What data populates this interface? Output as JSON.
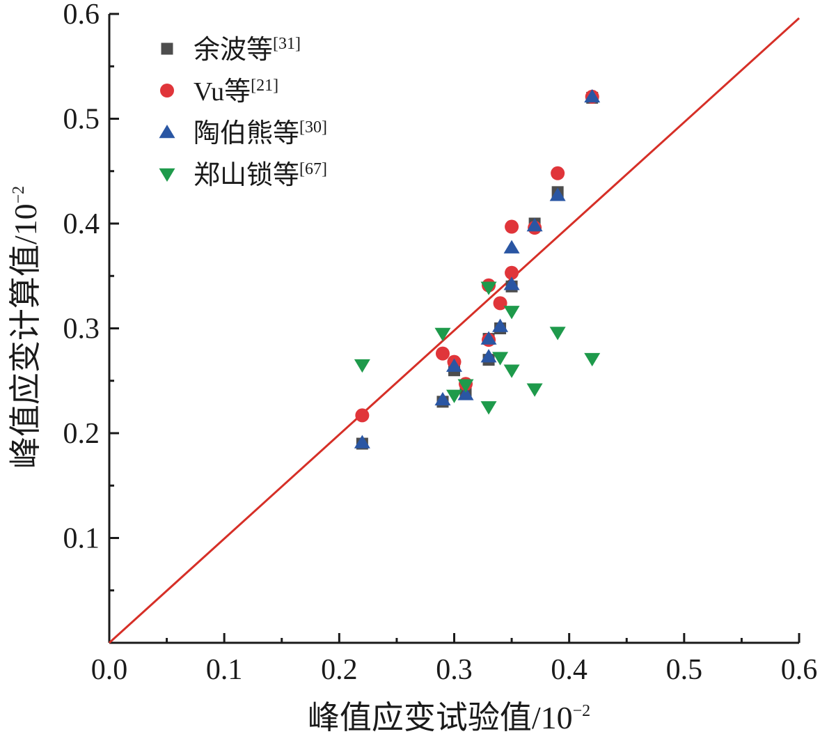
{
  "chart_data": {
    "type": "scatter",
    "xlabel": "峰值应变试验值/10",
    "xlabel_exp": "−2",
    "ylabel": "峰值应变计算值/10",
    "ylabel_exp": "−2",
    "xlim": [
      0,
      0.6
    ],
    "ylim": [
      0,
      0.6
    ],
    "x_ticks": [
      "0.0",
      "0.1",
      "0.2",
      "0.3",
      "0.4",
      "0.5",
      "0.6"
    ],
    "y_ticks": [
      "0.1",
      "0.2",
      "0.3",
      "0.4",
      "0.5",
      "0.6"
    ],
    "grid": false,
    "legend_position": "top-left",
    "reference_line": {
      "x": [
        0,
        0.6
      ],
      "y": [
        0,
        0.596
      ],
      "color": "#d62f27"
    },
    "series": [
      {
        "name": "余波等",
        "ref": "[31]",
        "marker": "square",
        "color": "#4d4d4d",
        "points": [
          [
            0.22,
            0.19
          ],
          [
            0.29,
            0.23
          ],
          [
            0.3,
            0.26
          ],
          [
            0.31,
            0.24
          ],
          [
            0.33,
            0.27
          ],
          [
            0.33,
            0.29
          ],
          [
            0.34,
            0.3
          ],
          [
            0.35,
            0.34
          ],
          [
            0.37,
            0.4
          ],
          [
            0.39,
            0.43
          ],
          [
            0.42,
            0.52
          ]
        ]
      },
      {
        "name": "Vu等",
        "ref": "[21]",
        "marker": "circle",
        "color": "#e0353a",
        "points": [
          [
            0.22,
            0.217
          ],
          [
            0.29,
            0.276
          ],
          [
            0.3,
            0.268
          ],
          [
            0.31,
            0.247
          ],
          [
            0.33,
            0.341
          ],
          [
            0.33,
            0.289
          ],
          [
            0.34,
            0.324
          ],
          [
            0.35,
            0.353
          ],
          [
            0.35,
            0.397
          ],
          [
            0.37,
            0.396
          ],
          [
            0.39,
            0.448
          ],
          [
            0.42,
            0.521
          ]
        ]
      },
      {
        "name": "陶伯熊等",
        "ref": "[30]",
        "marker": "triangle-up",
        "color": "#2a56a3",
        "points": [
          [
            0.22,
            0.191
          ],
          [
            0.29,
            0.232
          ],
          [
            0.3,
            0.264
          ],
          [
            0.31,
            0.237
          ],
          [
            0.33,
            0.273
          ],
          [
            0.33,
            0.29
          ],
          [
            0.34,
            0.302
          ],
          [
            0.35,
            0.342
          ],
          [
            0.35,
            0.377
          ],
          [
            0.37,
            0.398
          ],
          [
            0.39,
            0.427
          ],
          [
            0.42,
            0.521
          ]
        ]
      },
      {
        "name": "郑山锁等",
        "ref": "[67]",
        "marker": "triangle-down",
        "color": "#1e9a4b",
        "points": [
          [
            0.22,
            0.265
          ],
          [
            0.29,
            0.295
          ],
          [
            0.3,
            0.236
          ],
          [
            0.31,
            0.246
          ],
          [
            0.33,
            0.225
          ],
          [
            0.33,
            0.339
          ],
          [
            0.34,
            0.272
          ],
          [
            0.35,
            0.316
          ],
          [
            0.35,
            0.26
          ],
          [
            0.37,
            0.242
          ],
          [
            0.39,
            0.296
          ],
          [
            0.42,
            0.271
          ]
        ]
      }
    ]
  }
}
